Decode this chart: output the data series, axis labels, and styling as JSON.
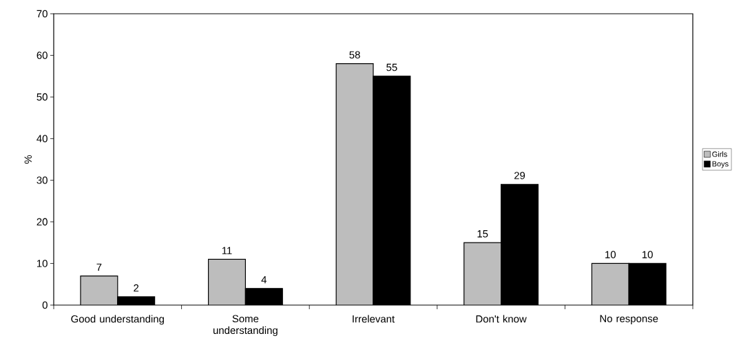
{
  "chart_data": {
    "type": "bar",
    "ylabel": "%",
    "categories": [
      "Good understanding",
      "Some understanding",
      "Irrelevant",
      "Don't know",
      "No response"
    ],
    "series": [
      {
        "name": "Girls",
        "color": "#bdbdbd",
        "values": [
          7,
          11,
          58,
          15,
          10
        ]
      },
      {
        "name": "Boys",
        "color": "#000000",
        "values": [
          2,
          4,
          55,
          29,
          10
        ]
      }
    ],
    "ylim": [
      0,
      70
    ],
    "yticks": [
      0,
      10,
      20,
      30,
      40,
      50,
      60,
      70
    ],
    "data_labels": true,
    "legend": "right"
  }
}
